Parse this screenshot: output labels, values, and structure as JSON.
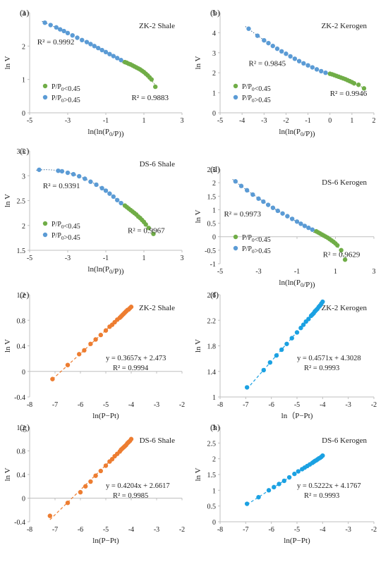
{
  "colors": {
    "green": "#70ad47",
    "blue": "#5b9bd5",
    "orange": "#ed7d31",
    "cyan": "#1ba1e2",
    "axis": "#bfbfbf",
    "text": "#222222"
  },
  "chart_data": [
    {
      "panel_label": "(a)",
      "type": "scatter",
      "title": "ZK-2  Shale",
      "xlabel": "ln(ln(P0/P))",
      "ylabel": "ln V",
      "xlim": [
        -5,
        3
      ],
      "ylim": [
        0,
        3
      ],
      "xticks": [
        -5,
        -3,
        -1,
        1,
        3
      ],
      "yticks": [
        0,
        1,
        2,
        3
      ],
      "grid": false,
      "legend_position": "bottom-left",
      "series": [
        {
          "name": "P/P0<0.45",
          "color": "#70ad47",
          "x": [
            0.0,
            0.1,
            0.2,
            0.3,
            0.4,
            0.5,
            0.6,
            0.7,
            0.8,
            0.9,
            1.0,
            1.1,
            1.2,
            1.3,
            1.4,
            1.6
          ],
          "y": [
            1.52,
            1.5,
            1.47,
            1.45,
            1.42,
            1.39,
            1.36,
            1.33,
            1.3,
            1.26,
            1.22,
            1.17,
            1.12,
            1.06,
            1.0,
            0.78
          ]
        },
        {
          "name": "P/P0>0.45",
          "color": "#5b9bd5",
          "x": [
            -4.2,
            -3.9,
            -3.6,
            -3.4,
            -3.2,
            -3.0,
            -2.75,
            -2.5,
            -2.25,
            -2.0,
            -1.8,
            -1.6,
            -1.4,
            -1.2,
            -1.0,
            -0.8,
            -0.6,
            -0.4,
            -0.2
          ],
          "y": [
            2.7,
            2.63,
            2.56,
            2.5,
            2.45,
            2.39,
            2.32,
            2.25,
            2.18,
            2.12,
            2.06,
            2.0,
            1.94,
            1.88,
            1.82,
            1.76,
            1.7,
            1.64,
            1.58
          ]
        }
      ],
      "annotations": [
        {
          "text": "R² = 0.9992",
          "x": -4.6,
          "y": 2.05
        },
        {
          "text": "R² = 0.9883",
          "x": 0.35,
          "y": 0.38
        }
      ]
    },
    {
      "panel_label": "(b)",
      "type": "scatter",
      "title": "ZK-2  Kerogen",
      "xlabel": "ln(ln(P0/P))",
      "ylabel": "ln V",
      "xlim": [
        -5,
        2
      ],
      "ylim": [
        0,
        5
      ],
      "xticks": [
        -5,
        -4,
        -3,
        -2,
        -1,
        0,
        1,
        2
      ],
      "yticks": [
        0,
        1,
        2,
        3,
        4,
        5
      ],
      "grid": false,
      "legend_position": "bottom-left",
      "series": [
        {
          "name": "P/P0<0.45",
          "color": "#70ad47",
          "x": [
            0.0,
            0.1,
            0.2,
            0.3,
            0.4,
            0.5,
            0.6,
            0.7,
            0.8,
            0.9,
            1.0,
            1.1,
            1.3,
            1.55
          ],
          "y": [
            1.95,
            1.92,
            1.88,
            1.84,
            1.8,
            1.76,
            1.72,
            1.68,
            1.63,
            1.58,
            1.53,
            1.47,
            1.4,
            1.22
          ]
        },
        {
          "name": "P/P0>0.45",
          "color": "#5b9bd5",
          "x": [
            -3.7,
            -3.3,
            -3.0,
            -2.8,
            -2.6,
            -2.4,
            -2.2,
            -2.0,
            -1.8,
            -1.6,
            -1.4,
            -1.2,
            -1.0,
            -0.8,
            -0.6,
            -0.4,
            -0.2
          ],
          "y": [
            4.2,
            3.85,
            3.62,
            3.48,
            3.34,
            3.2,
            3.07,
            2.95,
            2.82,
            2.7,
            2.58,
            2.47,
            2.37,
            2.27,
            2.17,
            2.08,
            2.0
          ]
        }
      ],
      "annotations": [
        {
          "text": "R² = 0.9845",
          "x": -3.7,
          "y": 2.35
        },
        {
          "text": "R² = 0.9946",
          "x": 0.0,
          "y": 0.85
        }
      ]
    },
    {
      "panel_label": "(c)",
      "type": "scatter",
      "title": "DS-6 Shale",
      "xlabel": "ln(ln(P0/P))",
      "ylabel": "ln V",
      "xlim": [
        -5,
        3
      ],
      "ylim": [
        1.5,
        3.5
      ],
      "xticks": [
        -5,
        -3,
        -1,
        1,
        3
      ],
      "yticks": [
        1.5,
        2,
        2.5,
        3,
        3.5
      ],
      "grid": false,
      "legend_position": "bottom-left",
      "series": [
        {
          "name": "P/P0<0.45",
          "color": "#70ad47",
          "x": [
            0.0,
            0.1,
            0.2,
            0.3,
            0.4,
            0.5,
            0.6,
            0.7,
            0.8,
            0.9,
            1.0,
            1.1,
            1.25,
            1.5
          ],
          "y": [
            2.4,
            2.37,
            2.34,
            2.31,
            2.28,
            2.25,
            2.22,
            2.18,
            2.15,
            2.11,
            2.07,
            2.02,
            1.95,
            1.83
          ]
        },
        {
          "name": "P/P0>0.45",
          "color": "#5b9bd5",
          "x": [
            -4.5,
            -3.5,
            -3.3,
            -3.0,
            -2.7,
            -2.4,
            -2.1,
            -1.8,
            -1.5,
            -1.2,
            -1.0,
            -0.8,
            -0.6,
            -0.4,
            -0.2
          ],
          "y": [
            3.12,
            3.1,
            3.09,
            3.06,
            3.03,
            2.99,
            2.94,
            2.88,
            2.82,
            2.75,
            2.7,
            2.64,
            2.58,
            2.51,
            2.45
          ]
        }
      ],
      "annotations": [
        {
          "text": "R² = 0.9391",
          "x": -4.3,
          "y": 2.75
        },
        {
          "text": "R² = 0.9967",
          "x": 0.15,
          "y": 1.85
        }
      ]
    },
    {
      "panel_label": "(d)",
      "type": "scatter",
      "title": "DS-6 Kerogen",
      "xlabel": "ln(ln(P0/P))",
      "ylabel": "ln V",
      "xlim": [
        -5,
        3
      ],
      "ylim": [
        -1,
        2.5
      ],
      "xticks": [
        -5,
        -3,
        -1,
        1,
        3
      ],
      "yticks": [
        -1,
        -0.5,
        0,
        0.5,
        1,
        1.5,
        2,
        2.5
      ],
      "grid": false,
      "legend_position": "bottom-left",
      "series": [
        {
          "name": "P/P0<0.45",
          "color": "#70ad47",
          "x": [
            0.0,
            0.1,
            0.2,
            0.3,
            0.4,
            0.5,
            0.6,
            0.7,
            0.8,
            0.9,
            1.0,
            1.1,
            1.3,
            1.5
          ],
          "y": [
            0.2,
            0.16,
            0.12,
            0.08,
            0.04,
            0.0,
            -0.04,
            -0.09,
            -0.14,
            -0.19,
            -0.25,
            -0.32,
            -0.5,
            -0.85
          ]
        },
        {
          "name": "P/P0>0.45",
          "color": "#5b9bd5",
          "x": [
            -4.2,
            -3.9,
            -3.6,
            -3.3,
            -3.0,
            -2.75,
            -2.5,
            -2.25,
            -2.0,
            -1.75,
            -1.5,
            -1.25,
            -1.0,
            -0.8,
            -0.6,
            -0.4,
            -0.2
          ],
          "y": [
            2.05,
            1.88,
            1.72,
            1.56,
            1.41,
            1.3,
            1.18,
            1.07,
            0.96,
            0.86,
            0.76,
            0.66,
            0.56,
            0.48,
            0.4,
            0.33,
            0.26
          ]
        }
      ],
      "annotations": [
        {
          "text": "R² = 0.9973",
          "x": -4.8,
          "y": 0.75
        },
        {
          "text": "R² = 0.9629",
          "x": 0.35,
          "y": -0.75
        }
      ]
    },
    {
      "panel_label": "(e)",
      "type": "scatter",
      "title": "ZK-2  Shale",
      "xlabel": "ln(P−Pt)",
      "ylabel": "ln V",
      "xlim": [
        -8,
        -2
      ],
      "ylim": [
        -0.4,
        1.2
      ],
      "xticks": [
        -8,
        -7,
        -6,
        -5,
        -4,
        -3,
        -2
      ],
      "yticks": [
        -0.4,
        0,
        0.4,
        0.8,
        1.2
      ],
      "grid": false,
      "equation": "y = 0.3657x + 2.473",
      "r2": "R² = 0.9994",
      "trendline": {
        "slope": 0.3657,
        "intercept": 2.473
      },
      "series": [
        {
          "name": "",
          "color": "#ed7d31",
          "x": [
            -7.1,
            -6.5,
            -6.05,
            -5.85,
            -5.6,
            -5.4,
            -5.2,
            -5.0,
            -4.85,
            -4.75,
            -4.65,
            -4.55,
            -4.45,
            -4.4,
            -4.35,
            -4.3,
            -4.25,
            -4.2,
            -4.15,
            -4.1,
            -4.05,
            -4.0
          ],
          "y": [
            -0.12,
            0.1,
            0.27,
            0.33,
            0.43,
            0.5,
            0.57,
            0.64,
            0.7,
            0.73,
            0.77,
            0.81,
            0.84,
            0.86,
            0.88,
            0.9,
            0.92,
            0.94,
            0.96,
            0.97,
            0.99,
            1.01
          ]
        }
      ]
    },
    {
      "panel_label": "(f)",
      "type": "scatter",
      "title": "ZK-2 Kerogen",
      "xlabel": "ln（P−Pt)",
      "ylabel": "ln V",
      "xlim": [
        -8,
        -2
      ],
      "ylim": [
        1,
        2.6
      ],
      "xticks": [
        -8,
        -7,
        -6,
        -5,
        -4,
        -3,
        -2
      ],
      "yticks": [
        1,
        1.4,
        1.8,
        2.2,
        2.6
      ],
      "grid": false,
      "equation": "y = 0.4571x + 4.3028",
      "r2": "R² = 0.9993",
      "trendline": {
        "slope": 0.4571,
        "intercept": 4.3028
      },
      "series": [
        {
          "name": "",
          "color": "#1ba1e2",
          "x": [
            -6.95,
            -6.3,
            -6.05,
            -5.8,
            -5.6,
            -5.4,
            -5.2,
            -5.0,
            -4.85,
            -4.75,
            -4.65,
            -4.55,
            -4.45,
            -4.4,
            -4.35,
            -4.3,
            -4.25,
            -4.2,
            -4.15,
            -4.1,
            -4.05,
            -4.0
          ],
          "y": [
            1.15,
            1.42,
            1.54,
            1.65,
            1.74,
            1.83,
            1.92,
            2.01,
            2.08,
            2.13,
            2.18,
            2.22,
            2.27,
            2.29,
            2.31,
            2.34,
            2.36,
            2.38,
            2.41,
            2.43,
            2.46,
            2.49
          ]
        }
      ]
    },
    {
      "panel_label": "(g)",
      "type": "scatter",
      "title": "DS-6 Shale",
      "xlabel": "ln(P−Pt)",
      "ylabel": "ln V",
      "xlim": [
        -8,
        -2
      ],
      "ylim": [
        -0.4,
        1.2
      ],
      "xticks": [
        -8,
        -7,
        -6,
        -5,
        -4,
        -3,
        -2
      ],
      "yticks": [
        -0.4,
        0,
        0.4,
        0.8,
        1.2
      ],
      "grid": false,
      "equation": "y = 0.4204x + 2.6617",
      "r2": "R² = 0.9985",
      "trendline": {
        "slope": 0.4204,
        "intercept": 2.6617
      },
      "series": [
        {
          "name": "",
          "color": "#ed7d31",
          "x": [
            -7.2,
            -6.5,
            -6.0,
            -5.8,
            -5.6,
            -5.4,
            -5.2,
            -5.0,
            -4.85,
            -4.75,
            -4.65,
            -4.55,
            -4.45,
            -4.4,
            -4.35,
            -4.3,
            -4.25,
            -4.2,
            -4.15,
            -4.1,
            -4.05,
            -4.0
          ],
          "y": [
            -0.3,
            -0.08,
            0.1,
            0.2,
            0.28,
            0.38,
            0.46,
            0.55,
            0.62,
            0.66,
            0.71,
            0.75,
            0.79,
            0.82,
            0.84,
            0.86,
            0.88,
            0.9,
            0.93,
            0.95,
            0.97,
            1.0
          ]
        }
      ]
    },
    {
      "panel_label": "(h)",
      "type": "scatter",
      "title": "DS-6 Kerogen",
      "xlabel": "ln(P−Pt)",
      "ylabel": "ln V",
      "xlim": [
        -8,
        -2
      ],
      "ylim": [
        0,
        3
      ],
      "xticks": [
        -8,
        -7,
        -6,
        -5,
        -4,
        -3,
        -2
      ],
      "yticks": [
        0,
        0.5,
        1,
        1.5,
        2,
        2.5,
        3
      ],
      "grid": false,
      "equation": "y = 0.5222x + 4.1767",
      "r2": "R² = 0.9993",
      "trendline": {
        "slope": 0.5222,
        "intercept": 4.1767
      },
      "series": [
        {
          "name": "",
          "color": "#1ba1e2",
          "x": [
            -6.95,
            -6.5,
            -6.1,
            -5.9,
            -5.7,
            -5.5,
            -5.3,
            -5.1,
            -4.95,
            -4.8,
            -4.7,
            -4.6,
            -4.5,
            -4.4,
            -4.35,
            -4.3,
            -4.25,
            -4.2,
            -4.15,
            -4.1,
            -4.05,
            -4.0
          ],
          "y": [
            0.57,
            0.78,
            1.0,
            1.1,
            1.2,
            1.3,
            1.41,
            1.52,
            1.6,
            1.67,
            1.72,
            1.77,
            1.82,
            1.87,
            1.9,
            1.93,
            1.95,
            1.98,
            2.01,
            2.03,
            2.06,
            2.1
          ]
        }
      ]
    }
  ]
}
